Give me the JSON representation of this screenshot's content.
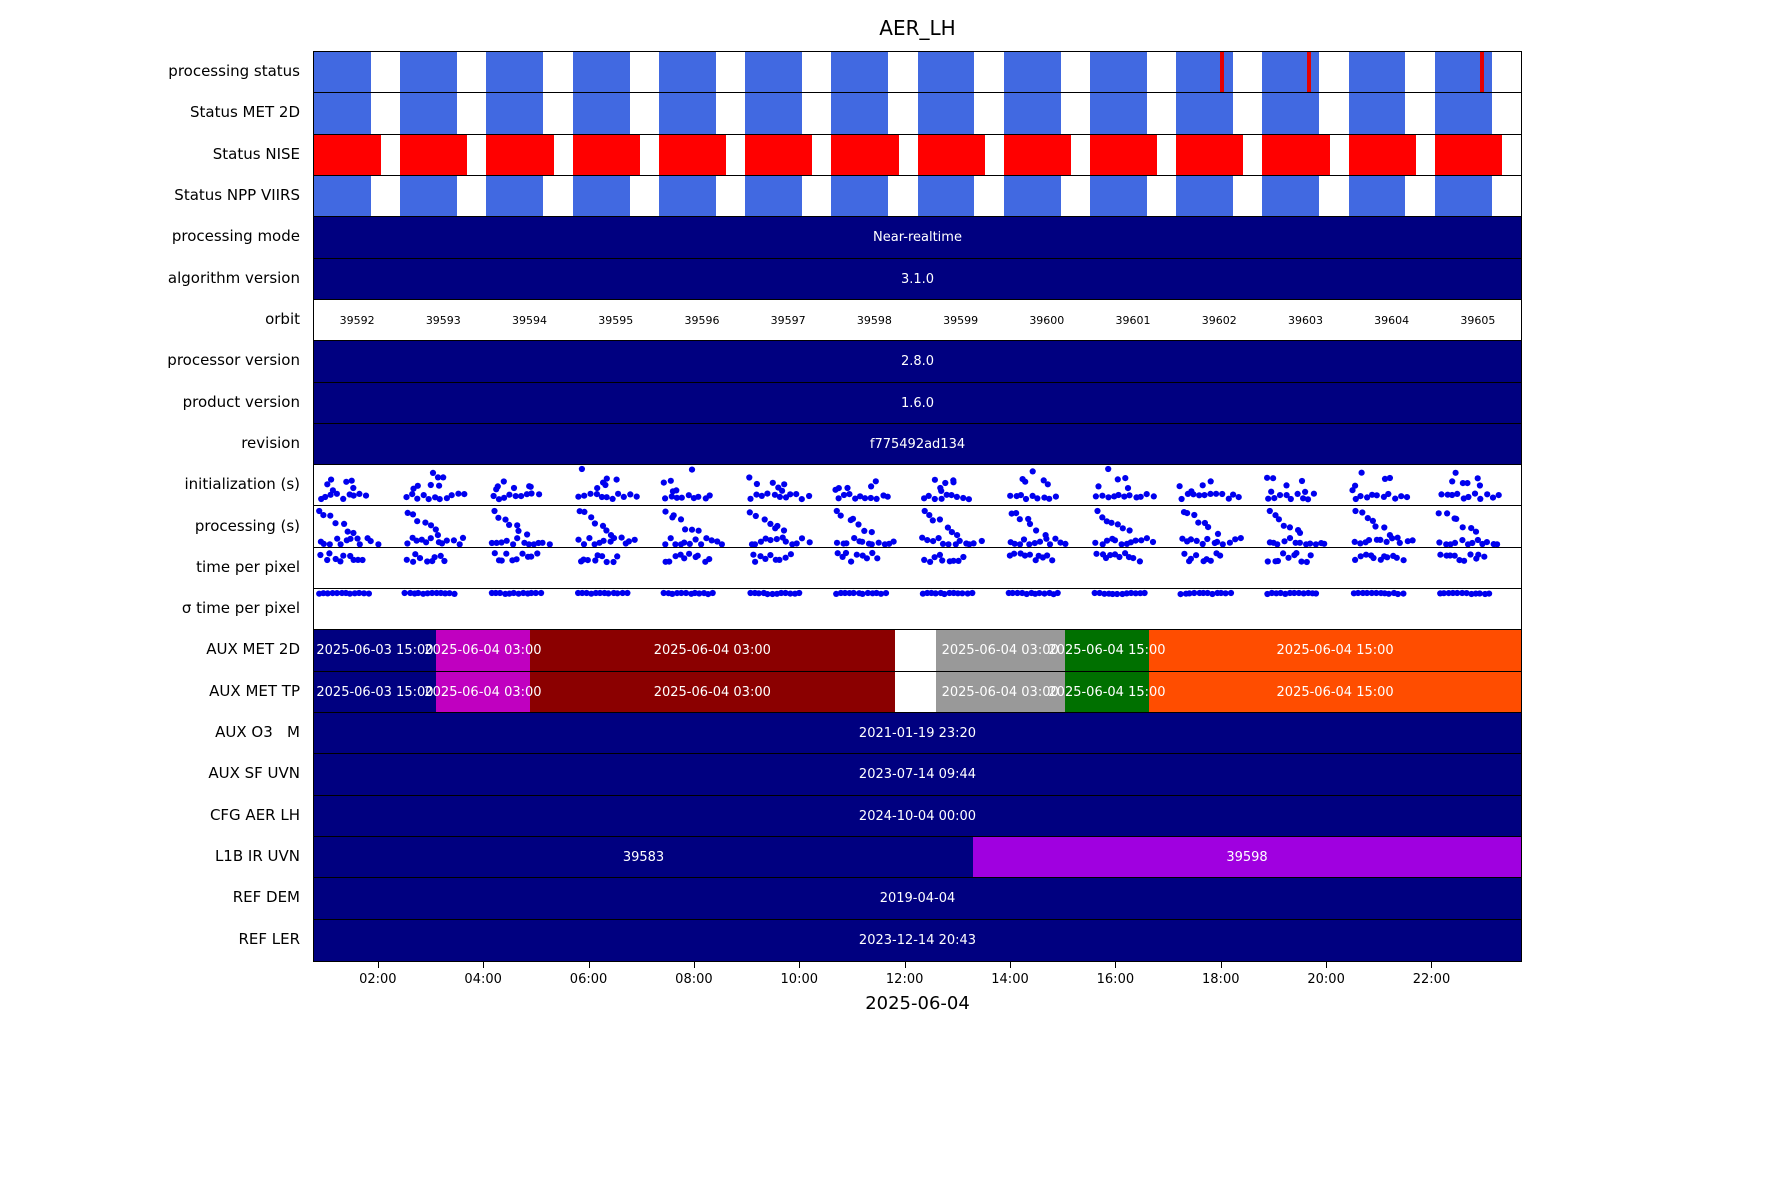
{
  "title": "AER_LH",
  "x_axis": {
    "label": "2025-06-04",
    "start_hour": 0.77,
    "end_hour": 23.68,
    "ticks": [
      {
        "hour": 2,
        "label": "02:00"
      },
      {
        "hour": 4,
        "label": "04:00"
      },
      {
        "hour": 6,
        "label": "06:00"
      },
      {
        "hour": 8,
        "label": "08:00"
      },
      {
        "hour": 10,
        "label": "10:00"
      },
      {
        "hour": 12,
        "label": "12:00"
      },
      {
        "hour": 14,
        "label": "14:00"
      },
      {
        "hour": 16,
        "label": "16:00"
      },
      {
        "hour": 18,
        "label": "18:00"
      },
      {
        "hour": 20,
        "label": "20:00"
      },
      {
        "hour": 22,
        "label": "22:00"
      }
    ]
  },
  "colors": {
    "blue": "#4169E1",
    "red": "#FF0000",
    "error_red": "#E50000",
    "navy": "#000080",
    "magenta": "#C000C0",
    "darkred": "#8B0000",
    "gray": "#999999",
    "green": "#007000",
    "orange": "#FF4D00",
    "purple": "#A000E0",
    "white": "#FFFFFF",
    "dot": "#0000EE"
  },
  "chart_data": {
    "type": "timeline-status",
    "n_orbits": 14,
    "orbits": [
      "39592",
      "39593",
      "39594",
      "39595",
      "39596",
      "39597",
      "39598",
      "39599",
      "39600",
      "39601",
      "39602",
      "39603",
      "39604",
      "39605"
    ],
    "rows": [
      {
        "label": "processing status",
        "kind": "blocks",
        "color": "blue",
        "fill_fraction": 0.66,
        "error_marks": [
          0.752,
          0.824,
          0.968
        ]
      },
      {
        "label": "Status MET 2D",
        "kind": "blocks",
        "color": "blue",
        "fill_fraction": 0.66
      },
      {
        "label": "Status NISE",
        "kind": "blocks",
        "color": "red",
        "fill_fraction": 0.78
      },
      {
        "label": "Status NPP VIIRS",
        "kind": "blocks",
        "color": "blue",
        "fill_fraction": 0.66
      },
      {
        "label": "processing mode",
        "kind": "bar",
        "segments": [
          {
            "start": 0,
            "end": 1,
            "color": "navy",
            "text": "Near-realtime"
          }
        ]
      },
      {
        "label": "algorithm version",
        "kind": "bar",
        "segments": [
          {
            "start": 0,
            "end": 1,
            "color": "navy",
            "text": "3.1.0"
          }
        ]
      },
      {
        "label": "orbit",
        "kind": "orbit-numbers"
      },
      {
        "label": "processor version",
        "kind": "bar",
        "segments": [
          {
            "start": 0,
            "end": 1,
            "color": "navy",
            "text": "2.8.0"
          }
        ]
      },
      {
        "label": "product version",
        "kind": "bar",
        "segments": [
          {
            "start": 0,
            "end": 1,
            "color": "navy",
            "text": "1.6.0"
          }
        ]
      },
      {
        "label": "revision",
        "kind": "bar",
        "segments": [
          {
            "start": 0,
            "end": 1,
            "color": "navy",
            "text": "f775492ad134"
          }
        ]
      },
      {
        "label": "initialization (s)",
        "kind": "scatter",
        "pattern": "init"
      },
      {
        "label": "processing (s)",
        "kind": "scatter",
        "pattern": "proc"
      },
      {
        "label": "time per pixel",
        "kind": "scatter",
        "pattern": "tpp"
      },
      {
        "label": "σ time per pixel",
        "kind": "scatter",
        "pattern": "sigma"
      },
      {
        "label": "AUX MET 2D",
        "kind": "bar",
        "segments": [
          {
            "start": 0,
            "end": 0.101,
            "color": "navy",
            "text": "2025-06-03 15:00"
          },
          {
            "start": 0.101,
            "end": 0.179,
            "color": "magenta",
            "text": "2025-06-04 03:00"
          },
          {
            "start": 0.179,
            "end": 0.481,
            "color": "darkred",
            "text": "2025-06-04 03:00"
          },
          {
            "start": 0.481,
            "end": 0.515,
            "color": "white",
            "text": ""
          },
          {
            "start": 0.515,
            "end": 0.622,
            "color": "gray",
            "text": "2025-06-04 03:00"
          },
          {
            "start": 0.622,
            "end": 0.692,
            "color": "green",
            "text": "2025-06-04 15:00"
          },
          {
            "start": 0.692,
            "end": 1,
            "color": "orange",
            "text": "2025-06-04 15:00"
          }
        ]
      },
      {
        "label": "AUX MET TP",
        "kind": "bar",
        "segments": [
          {
            "start": 0,
            "end": 0.101,
            "color": "navy",
            "text": "2025-06-03 15:00"
          },
          {
            "start": 0.101,
            "end": 0.179,
            "color": "magenta",
            "text": "2025-06-04 03:00"
          },
          {
            "start": 0.179,
            "end": 0.481,
            "color": "darkred",
            "text": "2025-06-04 03:00"
          },
          {
            "start": 0.481,
            "end": 0.515,
            "color": "white",
            "text": ""
          },
          {
            "start": 0.515,
            "end": 0.622,
            "color": "gray",
            "text": "2025-06-04 03:00"
          },
          {
            "start": 0.622,
            "end": 0.692,
            "color": "green",
            "text": "2025-06-04 15:00"
          },
          {
            "start": 0.692,
            "end": 1,
            "color": "orange",
            "text": "2025-06-04 15:00"
          }
        ]
      },
      {
        "label": "AUX O3   M",
        "kind": "bar",
        "segments": [
          {
            "start": 0,
            "end": 1,
            "color": "navy",
            "text": "2021-01-19 23:20"
          }
        ]
      },
      {
        "label": "AUX SF UVN",
        "kind": "bar",
        "segments": [
          {
            "start": 0,
            "end": 1,
            "color": "navy",
            "text": "2023-07-14 09:44"
          }
        ]
      },
      {
        "label": "CFG AER LH",
        "kind": "bar",
        "segments": [
          {
            "start": 0,
            "end": 1,
            "color": "navy",
            "text": "2024-10-04 00:00"
          }
        ]
      },
      {
        "label": "L1B IR UVN",
        "kind": "bar",
        "segments": [
          {
            "start": 0,
            "end": 0.546,
            "color": "navy",
            "text": "39583"
          },
          {
            "start": 0.546,
            "end": 1,
            "color": "purple",
            "text": "39598"
          }
        ]
      },
      {
        "label": "REF DEM",
        "kind": "bar",
        "segments": [
          {
            "start": 0,
            "end": 1,
            "color": "navy",
            "text": "2019-04-04"
          }
        ]
      },
      {
        "label": "REF LER",
        "kind": "bar",
        "segments": [
          {
            "start": 0,
            "end": 1,
            "color": "navy",
            "text": "2023-12-14 20:43"
          }
        ]
      }
    ]
  }
}
